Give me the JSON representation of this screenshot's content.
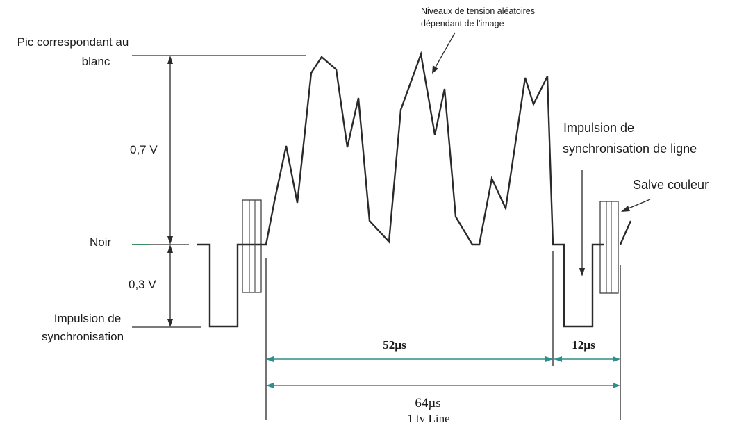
{
  "labels": {
    "white_peak": [
      "Pic correspondant au",
      "blanc"
    ],
    "random_levels": [
      "Niveaux de tension aléatoires",
      "dépendant de l’image"
    ],
    "line_sync": [
      "Impulsion de",
      "synchronisation de ligne"
    ],
    "color_burst": "Salve couleur",
    "black": "Noir",
    "sync_pulse": [
      "Impulsion de",
      "synchronisation"
    ],
    "video_amplitude": "0,7 V",
    "sync_amplitude": "0,3 V",
    "active_duration": "52µs",
    "blanking_duration": "12µs",
    "line_duration": "64µs",
    "line_caption": "1  tv  Line"
  },
  "colors": {
    "line": "#2a2a2a",
    "dimension": "#2d8f8a",
    "black_level_marker": "#3a8f60"
  }
}
